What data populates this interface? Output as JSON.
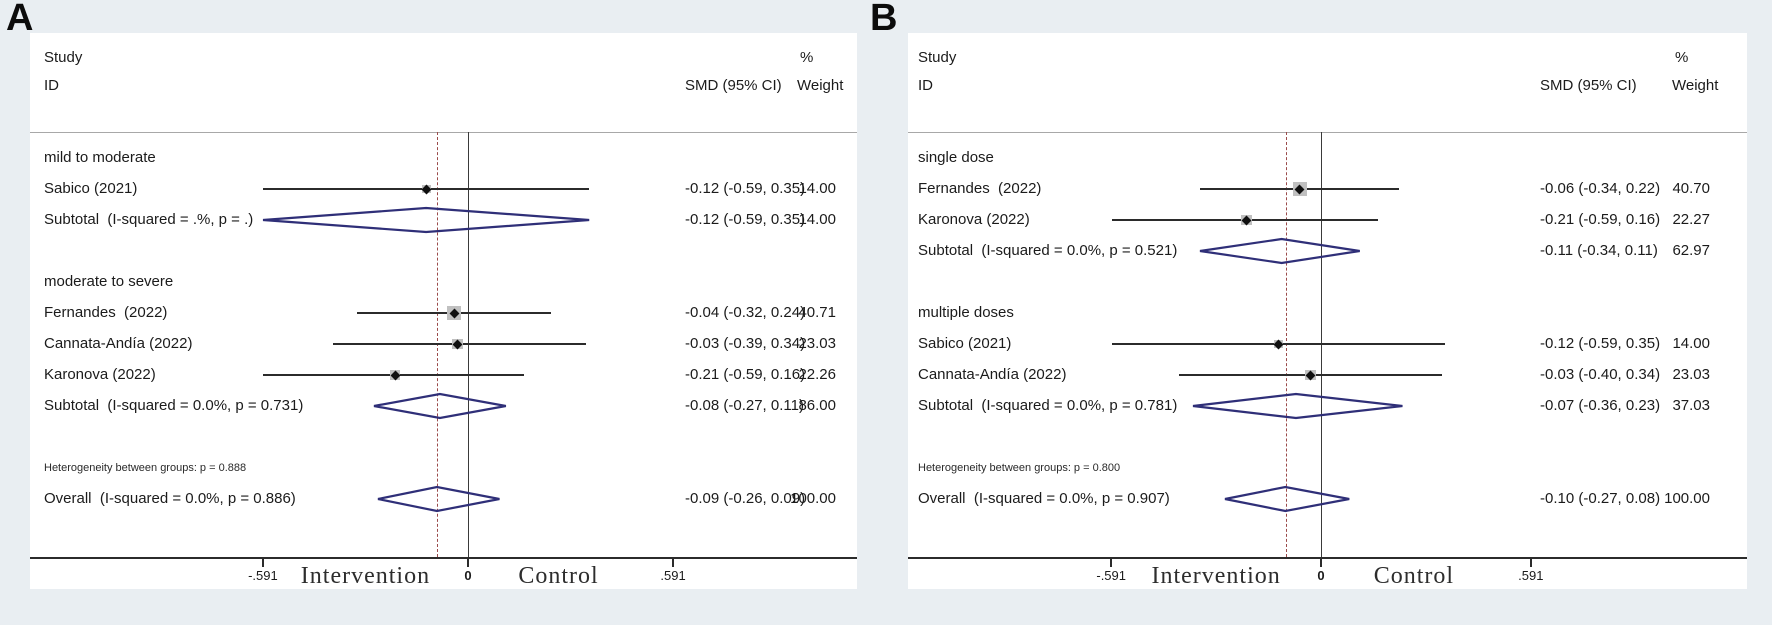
{
  "figure": {
    "background": "#e9eef2",
    "panel_background": "#ffffff"
  },
  "colors": {
    "ci_line": "#2b2b2b",
    "pooled_diamond": "#2f2f78",
    "zero_line": "#3a3a3a",
    "overall_dashed_line": "#9a4b4b",
    "marker": "#101010",
    "weight_box": "#c0c0c0",
    "text": "#1b1b1b"
  },
  "chart_data": [
    {
      "type": "forest",
      "panel_label": "A",
      "column_headers": {
        "study": "Study",
        "id": "ID",
        "percent": "%",
        "smd": "SMD (95% CI)",
        "weight": "Weight"
      },
      "axis": {
        "tick_labels": [
          "-.591",
          "0",
          ".591"
        ],
        "tick_values": [
          -0.591,
          0,
          0.591
        ],
        "left_label": "Intervention",
        "right_label": "Control",
        "overall_dashed_at": -0.09
      },
      "rows": [
        {
          "type": "group",
          "label": "mild to moderate"
        },
        {
          "type": "study",
          "label": "Sabico (2021)",
          "est": -0.12,
          "lo": -0.59,
          "hi": 0.35,
          "smd": "-0.12 (-0.59, 0.35)",
          "weight": "14.00",
          "weight_value": 14.0
        },
        {
          "type": "subtotal",
          "label": "Subtotal  (I-squared = .%, p = .)",
          "est": -0.12,
          "lo": -0.59,
          "hi": 0.35,
          "smd": "-0.12 (-0.59, 0.35)",
          "weight": "14.00"
        },
        {
          "type": "spacer"
        },
        {
          "type": "group",
          "label": "moderate to severe"
        },
        {
          "type": "study",
          "label": "Fernandes  (2022)",
          "est": -0.04,
          "lo": -0.32,
          "hi": 0.24,
          "smd": "-0.04 (-0.32, 0.24)",
          "weight": "40.71",
          "weight_value": 40.71
        },
        {
          "type": "study",
          "label": "Cannata-Andía (2022)",
          "est": -0.03,
          "lo": -0.39,
          "hi": 0.34,
          "smd": "-0.03 (-0.39, 0.34)",
          "weight": "23.03",
          "weight_value": 23.03
        },
        {
          "type": "study",
          "label": "Karonova (2022)",
          "est": -0.21,
          "lo": -0.59,
          "hi": 0.16,
          "smd": "-0.21 (-0.59, 0.16)",
          "weight": "22.26",
          "weight_value": 22.26
        },
        {
          "type": "subtotal",
          "label": "Subtotal  (I-squared = 0.0%, p = 0.731)",
          "est": -0.08,
          "lo": -0.27,
          "hi": 0.11,
          "smd": "-0.08 (-0.27, 0.11)",
          "weight": "86.00"
        },
        {
          "type": "spacer"
        },
        {
          "type": "note",
          "label": "Heterogeneity between groups: p = 0.888"
        },
        {
          "type": "overall",
          "label": "Overall  (I-squared = 0.0%, p = 0.886)",
          "est": -0.09,
          "lo": -0.26,
          "hi": 0.09,
          "smd": "-0.09 (-0.26, 0.09)",
          "weight": "100.00"
        }
      ]
    },
    {
      "type": "forest",
      "panel_label": "B",
      "column_headers": {
        "study": "Study",
        "id": "ID",
        "percent": "%",
        "smd": "SMD (95% CI)",
        "weight": "Weight"
      },
      "axis": {
        "tick_labels": [
          "-.591",
          "0",
          ".591"
        ],
        "tick_values": [
          -0.591,
          0,
          0.591
        ],
        "left_label": "Intervention",
        "right_label": "Control",
        "overall_dashed_at": -0.1
      },
      "rows": [
        {
          "type": "group",
          "label": "single dose"
        },
        {
          "type": "study",
          "label": "Fernandes  (2022)",
          "est": -0.06,
          "lo": -0.34,
          "hi": 0.22,
          "smd": "-0.06 (-0.34, 0.22)",
          "weight": "40.70",
          "weight_value": 40.7
        },
        {
          "type": "study",
          "label": "Karonova (2022)",
          "est": -0.21,
          "lo": -0.59,
          "hi": 0.16,
          "smd": "-0.21 (-0.59, 0.16)",
          "weight": "22.27",
          "weight_value": 22.27
        },
        {
          "type": "subtotal",
          "label": "Subtotal  (I-squared = 0.0%, p = 0.521)",
          "est": -0.11,
          "lo": -0.34,
          "hi": 0.11,
          "smd": "-0.11 (-0.34, 0.11)",
          "weight": "62.97"
        },
        {
          "type": "spacer"
        },
        {
          "type": "group",
          "label": "multiple doses"
        },
        {
          "type": "study",
          "label": "Sabico (2021)",
          "est": -0.12,
          "lo": -0.59,
          "hi": 0.35,
          "smd": "-0.12 (-0.59, 0.35)",
          "weight": "14.00",
          "weight_value": 14.0
        },
        {
          "type": "study",
          "label": "Cannata-Andía (2022)",
          "est": -0.03,
          "lo": -0.4,
          "hi": 0.34,
          "smd": "-0.03 (-0.40, 0.34)",
          "weight": "23.03",
          "weight_value": 23.03
        },
        {
          "type": "subtotal",
          "label": "Subtotal  (I-squared = 0.0%, p = 0.781)",
          "est": -0.07,
          "lo": -0.36,
          "hi": 0.23,
          "smd": "-0.07 (-0.36, 0.23)",
          "weight": "37.03"
        },
        {
          "type": "spacer"
        },
        {
          "type": "note",
          "label": "Heterogeneity between groups: p = 0.800"
        },
        {
          "type": "overall",
          "label": "Overall  (I-squared = 0.0%, p = 0.907)",
          "est": -0.1,
          "lo": -0.27,
          "hi": 0.08,
          "smd": "-0.10 (-0.27, 0.08)",
          "weight": "100.00"
        }
      ]
    }
  ]
}
